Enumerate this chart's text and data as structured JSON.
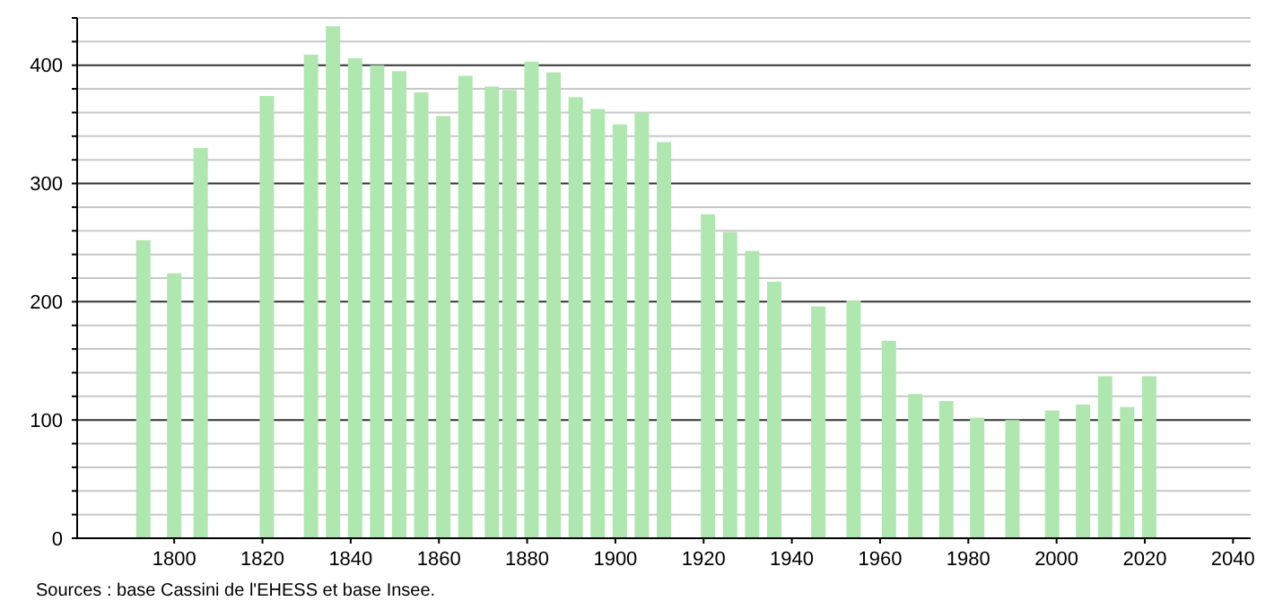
{
  "chart_data": {
    "type": "bar",
    "color": "#b0e6b0",
    "x": [
      1793,
      1800,
      1806,
      1821,
      1831,
      1836,
      1841,
      1846,
      1851,
      1856,
      1861,
      1866,
      1872,
      1876,
      1881,
      1886,
      1891,
      1896,
      1901,
      1906,
      1911,
      1921,
      1926,
      1931,
      1936,
      1946,
      1954,
      1962,
      1968,
      1975,
      1982,
      1990,
      1999,
      2006,
      2011,
      2016,
      2021
    ],
    "values": [
      252,
      224,
      330,
      374,
      409,
      433,
      406,
      400,
      395,
      377,
      357,
      391,
      382,
      379,
      403,
      394,
      373,
      363,
      350,
      360,
      335,
      274,
      259,
      243,
      217,
      196,
      201,
      167,
      122,
      116,
      102,
      100,
      108,
      113,
      137,
      111,
      137
    ],
    "xlim": [
      1778,
      2044
    ],
    "xticks": [
      1800,
      1820,
      1840,
      1860,
      1880,
      1900,
      1920,
      1940,
      1960,
      1980,
      2000,
      2020,
      2040
    ],
    "ylim": [
      0,
      440
    ],
    "yticks": [
      0,
      {
        "value": 20,
        "label": null
      },
      {
        "value": 40,
        "label": null
      },
      {
        "value": 60,
        "label": null
      },
      {
        "value": 80,
        "label": null
      },
      100,
      {
        "value": 120,
        "label": null
      },
      {
        "value": 140,
        "label": null
      },
      {
        "value": 160,
        "label": null
      },
      {
        "value": 180,
        "label": null
      },
      200,
      {
        "value": 220,
        "label": null
      },
      {
        "value": 240,
        "label": null
      },
      {
        "value": 260,
        "label": null
      },
      {
        "value": 280,
        "label": null
      },
      300,
      {
        "value": 320,
        "label": null
      },
      {
        "value": 340,
        "label": null
      },
      {
        "value": 360,
        "label": null
      },
      {
        "value": 380,
        "label": null
      },
      400,
      {
        "value": 420,
        "label": null
      },
      {
        "value": 440,
        "label": null
      }
    ],
    "grid": "y",
    "annotations": [
      "Sources : base Cassini de l'EHESS et base Insee."
    ]
  }
}
